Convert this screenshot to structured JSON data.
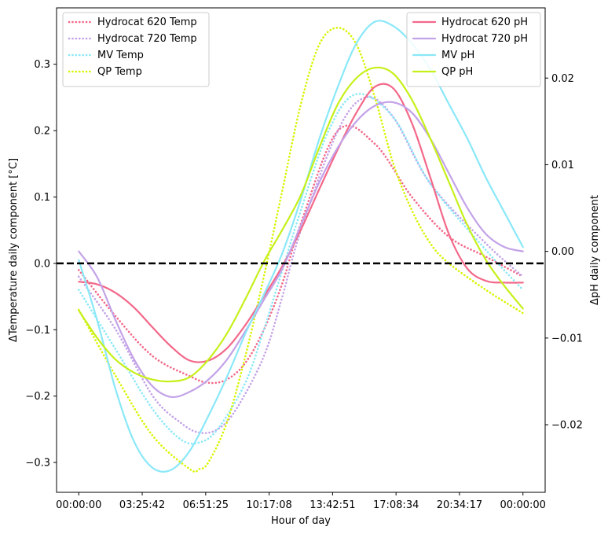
{
  "chart_data": {
    "type": "line",
    "title": "",
    "xlabel": "Hour of day",
    "ylabel_left": "ΔTemperature daily component [°C]",
    "ylabel_right": "ΔpH daily component",
    "x_tick_labels": [
      "00:00:00",
      "03:25:42",
      "06:51:25",
      "10:17:08",
      "13:42:51",
      "17:08:34",
      "20:34:17",
      "00:00:00"
    ],
    "x_tick_hours": [
      0,
      3.428,
      6.857,
      10.286,
      13.714,
      17.143,
      20.571,
      24
    ],
    "xlim_hours": [
      -1.2,
      25.2
    ],
    "y_left_ticks": [
      -0.3,
      -0.2,
      -0.1,
      0.0,
      0.1,
      0.2,
      0.3
    ],
    "y_left_tick_labels": [
      "−0.3",
      "−0.2",
      "−0.1",
      "0.0",
      "0.1",
      "0.2",
      "0.3"
    ],
    "ylim_left": [
      -0.345,
      0.385
    ],
    "y_right_ticks": [
      -0.02,
      -0.01,
      0.0,
      0.01,
      0.02
    ],
    "y_right_tick_labels": [
      "−0.02",
      "−0.01",
      "0.00",
      "0.01",
      "0.02"
    ],
    "ylim_right": [
      -0.0278,
      0.0281
    ],
    "reference_line": {
      "axis": "left",
      "y": 0,
      "style": "dashed",
      "color": "#000000"
    },
    "legend_left": {
      "position": "upper left",
      "entries": [
        "Hydrocat 620 Temp",
        "Hydrocat 720 Temp",
        "MV Temp",
        "QP Temp"
      ]
    },
    "legend_right": {
      "position": "upper right",
      "entries": [
        "Hydrocat 620 pH",
        "Hydrocat 720 pH",
        "MV pH",
        "QP pH"
      ]
    },
    "series": [
      {
        "name": "Hydrocat 620 Temp",
        "axis": "left",
        "style": "dotted",
        "color": "#f36889",
        "x": [
          0,
          2,
          4,
          6,
          7,
          8,
          9,
          10,
          11,
          12,
          14,
          16,
          18,
          20,
          22,
          24
        ],
        "y": [
          -0.01,
          -0.08,
          -0.14,
          -0.17,
          -0.18,
          -0.175,
          -0.15,
          -0.1,
          -0.03,
          0.06,
          0.2,
          0.18,
          0.1,
          0.04,
          0.01,
          -0.02
        ]
      },
      {
        "name": "Hydrocat 720 Temp",
        "axis": "left",
        "style": "dotted",
        "color": "#c3a2e8",
        "x": [
          0,
          2,
          4,
          5.5,
          6.5,
          7.5,
          8.5,
          10,
          11,
          12,
          14,
          15.5,
          17,
          19,
          22,
          24
        ],
        "y": [
          -0.02,
          -0.1,
          -0.2,
          -0.24,
          -0.255,
          -0.25,
          -0.22,
          -0.14,
          -0.05,
          0.05,
          0.2,
          0.25,
          0.22,
          0.12,
          0.03,
          -0.02
        ]
      },
      {
        "name": "MV Temp",
        "axis": "left",
        "style": "dotted",
        "color": "#8ae8f8",
        "x": [
          0,
          2,
          4,
          5.5,
          6.5,
          7.5,
          9,
          10,
          11,
          12,
          13.5,
          15,
          17,
          19,
          22,
          24
        ],
        "y": [
          -0.04,
          -0.13,
          -0.22,
          -0.265,
          -0.27,
          -0.25,
          -0.18,
          -0.1,
          -0.01,
          0.08,
          0.2,
          0.255,
          0.22,
          0.12,
          0.02,
          -0.04
        ]
      },
      {
        "name": "QP Temp",
        "axis": "left",
        "style": "dotted",
        "color": "#d8f400",
        "x": [
          0,
          2,
          4,
          6,
          6.5,
          7,
          8,
          9,
          10,
          11,
          12,
          13,
          14,
          15,
          16,
          17,
          18,
          19,
          20,
          22,
          24
        ],
        "y": [
          -0.07,
          -0.17,
          -0.26,
          -0.31,
          -0.31,
          -0.3,
          -0.24,
          -0.14,
          -0.02,
          0.11,
          0.24,
          0.33,
          0.355,
          0.33,
          0.25,
          0.15,
          0.08,
          0.03,
          0.0,
          -0.04,
          -0.075
        ]
      },
      {
        "name": "Hydrocat 620 pH",
        "axis": "right",
        "style": "solid",
        "color": "#f36889",
        "x": [
          0,
          1,
          2,
          3,
          4,
          5,
          6,
          7,
          8,
          9,
          10,
          11,
          12,
          13,
          14,
          15,
          16,
          17,
          18,
          19,
          20,
          21,
          22,
          23,
          24
        ],
        "y": [
          -0.0035,
          -0.0038,
          -0.0048,
          -0.0065,
          -0.0088,
          -0.011,
          -0.0126,
          -0.0126,
          -0.0112,
          -0.0085,
          -0.0052,
          -0.0017,
          0.0025,
          0.0072,
          0.0118,
          0.016,
          0.019,
          0.0188,
          0.0148,
          0.0085,
          0.002,
          -0.002,
          -0.0034,
          -0.0036,
          -0.0036
        ]
      },
      {
        "name": "Hydrocat 720 pH",
        "axis": "right",
        "style": "solid",
        "color": "#c3a2e8",
        "x": [
          0,
          1,
          2,
          3,
          4,
          5,
          6,
          7,
          8,
          9,
          10,
          11,
          12,
          13,
          14,
          15,
          16,
          17,
          18,
          19,
          20,
          21,
          22,
          23,
          24
        ],
        "y": [
          0.0,
          -0.003,
          -0.008,
          -0.0125,
          -0.0156,
          -0.0168,
          -0.0162,
          -0.0148,
          -0.0125,
          -0.0092,
          -0.0056,
          -0.002,
          0.003,
          0.008,
          0.012,
          0.015,
          0.0168,
          0.0172,
          0.016,
          0.013,
          0.009,
          0.005,
          0.002,
          0.0005,
          0.0
        ]
      },
      {
        "name": "MV pH",
        "axis": "right",
        "style": "solid",
        "color": "#8ae8f8",
        "x": [
          0,
          1,
          2,
          3,
          4,
          5,
          6,
          7,
          8,
          9,
          10,
          11,
          12,
          13,
          14,
          15,
          16,
          17,
          18,
          19,
          20,
          21,
          22,
          23,
          24
        ],
        "y": [
          -0.001,
          -0.008,
          -0.016,
          -0.022,
          -0.025,
          -0.0252,
          -0.023,
          -0.019,
          -0.0145,
          -0.0095,
          -0.005,
          -0.0002,
          0.006,
          0.013,
          0.019,
          0.024,
          0.0265,
          0.026,
          0.024,
          0.021,
          0.017,
          0.013,
          0.0085,
          0.0045,
          0.0005
        ]
      },
      {
        "name": "QP pH",
        "axis": "right",
        "style": "solid",
        "color": "#c6f01a",
        "x": [
          0,
          1,
          2,
          3,
          4,
          5,
          6,
          7,
          8,
          9,
          10,
          11,
          12,
          13,
          14,
          15,
          16,
          17,
          18,
          19,
          20,
          21,
          22,
          23,
          24
        ],
        "y": [
          -0.0068,
          -0.01,
          -0.0125,
          -0.014,
          -0.0148,
          -0.015,
          -0.0145,
          -0.0125,
          -0.0095,
          -0.0055,
          -0.0012,
          0.0025,
          0.0065,
          0.012,
          0.017,
          0.02,
          0.0212,
          0.0205,
          0.0175,
          0.013,
          0.008,
          0.003,
          -0.001,
          -0.004,
          -0.0066
        ]
      }
    ]
  }
}
